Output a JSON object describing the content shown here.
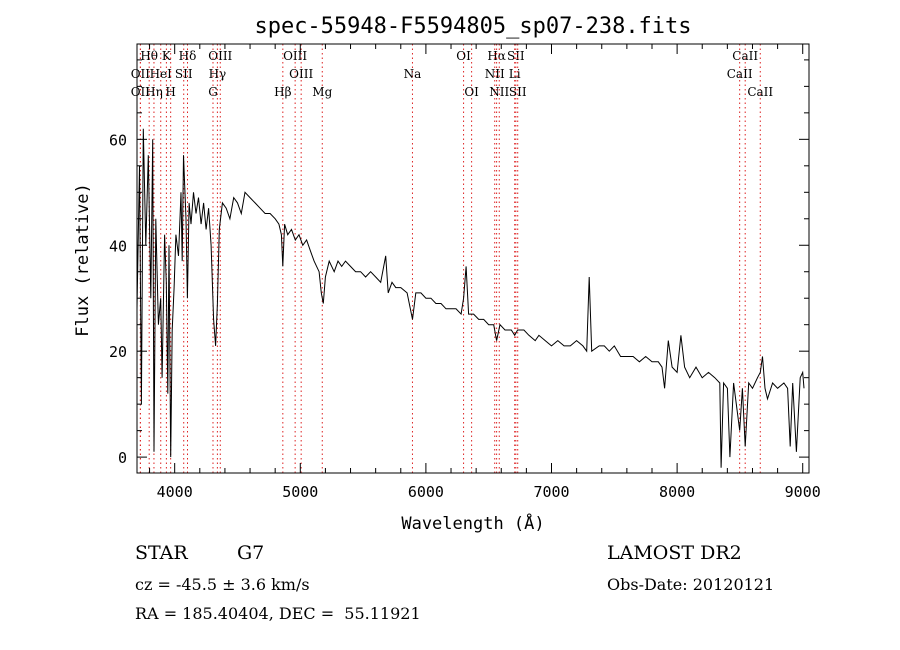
{
  "chart_data": {
    "type": "line",
    "title": "spec-55948-F5594805_sp07-238.fits",
    "xlabel": "Wavelength (Å)",
    "ylabel": "Flux (relative)",
    "xlim": [
      3700,
      9050
    ],
    "ylim": [
      -3,
      78
    ],
    "xticks": [
      4000,
      5000,
      6000,
      7000,
      8000,
      9000
    ],
    "yticks": [
      0,
      20,
      40,
      60
    ],
    "grid": false,
    "series": [
      {
        "values": [
          [
            3700,
            28
          ],
          [
            3720,
            55
          ],
          [
            3735,
            10
          ],
          [
            3750,
            62
          ],
          [
            3770,
            40
          ],
          [
            3790,
            57
          ],
          [
            3810,
            30
          ],
          [
            3825,
            60
          ],
          [
            3835,
            1
          ],
          [
            3850,
            45
          ],
          [
            3870,
            25
          ],
          [
            3889,
            30
          ],
          [
            3900,
            15
          ],
          [
            3920,
            42
          ],
          [
            3933,
            33
          ],
          [
            3945,
            12
          ],
          [
            3955,
            40
          ],
          [
            3968,
            0
          ],
          [
            3980,
            24
          ],
          [
            3995,
            32
          ],
          [
            4010,
            42
          ],
          [
            4030,
            38
          ],
          [
            4050,
            50
          ],
          [
            4060,
            37
          ],
          [
            4070,
            57
          ],
          [
            4090,
            45
          ],
          [
            4101,
            30
          ],
          [
            4115,
            48
          ],
          [
            4130,
            44
          ],
          [
            4150,
            50
          ],
          [
            4170,
            46
          ],
          [
            4190,
            49
          ],
          [
            4210,
            44
          ],
          [
            4230,
            48
          ],
          [
            4250,
            43
          ],
          [
            4270,
            47
          ],
          [
            4290,
            40
          ],
          [
            4310,
            26
          ],
          [
            4326,
            21
          ],
          [
            4340,
            29
          ],
          [
            4355,
            43
          ],
          [
            4380,
            48
          ],
          [
            4410,
            47
          ],
          [
            4440,
            45
          ],
          [
            4470,
            49
          ],
          [
            4500,
            48
          ],
          [
            4530,
            46
          ],
          [
            4560,
            50
          ],
          [
            4600,
            49
          ],
          [
            4640,
            48
          ],
          [
            4680,
            47
          ],
          [
            4720,
            46
          ],
          [
            4760,
            46
          ],
          [
            4800,
            45
          ],
          [
            4830,
            44
          ],
          [
            4850,
            42
          ],
          [
            4861,
            36
          ],
          [
            4875,
            44
          ],
          [
            4900,
            42
          ],
          [
            4930,
            43
          ],
          [
            4960,
            41
          ],
          [
            4990,
            42
          ],
          [
            5020,
            40
          ],
          [
            5050,
            41
          ],
          [
            5080,
            39
          ],
          [
            5110,
            37
          ],
          [
            5150,
            35
          ],
          [
            5167,
            31
          ],
          [
            5183,
            29
          ],
          [
            5200,
            34
          ],
          [
            5230,
            37
          ],
          [
            5270,
            35
          ],
          [
            5300,
            37
          ],
          [
            5330,
            36
          ],
          [
            5360,
            37
          ],
          [
            5400,
            36
          ],
          [
            5440,
            35
          ],
          [
            5480,
            35
          ],
          [
            5520,
            34
          ],
          [
            5560,
            35
          ],
          [
            5600,
            34
          ],
          [
            5640,
            33
          ],
          [
            5680,
            38
          ],
          [
            5700,
            31
          ],
          [
            5730,
            33
          ],
          [
            5760,
            32
          ],
          [
            5800,
            32
          ],
          [
            5850,
            31
          ],
          [
            5893,
            26
          ],
          [
            5920,
            31
          ],
          [
            5960,
            31
          ],
          [
            6000,
            30
          ],
          [
            6040,
            30
          ],
          [
            6080,
            29
          ],
          [
            6120,
            29
          ],
          [
            6160,
            28
          ],
          [
            6200,
            28
          ],
          [
            6240,
            28
          ],
          [
            6280,
            27
          ],
          [
            6300,
            30
          ],
          [
            6320,
            36
          ],
          [
            6340,
            27
          ],
          [
            6380,
            27
          ],
          [
            6420,
            26
          ],
          [
            6460,
            26
          ],
          [
            6500,
            25
          ],
          [
            6540,
            25
          ],
          [
            6563,
            22
          ],
          [
            6590,
            25
          ],
          [
            6630,
            24
          ],
          [
            6680,
            24
          ],
          [
            6707,
            23
          ],
          [
            6730,
            24
          ],
          [
            6780,
            24
          ],
          [
            6820,
            23
          ],
          [
            6870,
            22
          ],
          [
            6900,
            23
          ],
          [
            6950,
            22
          ],
          [
            7000,
            21
          ],
          [
            7050,
            22
          ],
          [
            7100,
            21
          ],
          [
            7150,
            21
          ],
          [
            7200,
            22
          ],
          [
            7250,
            21
          ],
          [
            7280,
            20
          ],
          [
            7300,
            34
          ],
          [
            7320,
            20
          ],
          [
            7380,
            21
          ],
          [
            7420,
            21
          ],
          [
            7460,
            20
          ],
          [
            7500,
            21
          ],
          [
            7550,
            19
          ],
          [
            7600,
            19
          ],
          [
            7650,
            19
          ],
          [
            7700,
            18
          ],
          [
            7750,
            19
          ],
          [
            7800,
            18
          ],
          [
            7850,
            18
          ],
          [
            7880,
            17
          ],
          [
            7900,
            13
          ],
          [
            7930,
            22
          ],
          [
            7960,
            17
          ],
          [
            8000,
            16
          ],
          [
            8030,
            23
          ],
          [
            8060,
            17
          ],
          [
            8100,
            15
          ],
          [
            8150,
            17
          ],
          [
            8200,
            15
          ],
          [
            8250,
            16
          ],
          [
            8300,
            15
          ],
          [
            8340,
            14
          ],
          [
            8350,
            -2
          ],
          [
            8370,
            14
          ],
          [
            8400,
            13
          ],
          [
            8420,
            0
          ],
          [
            8450,
            14
          ],
          [
            8498,
            5
          ],
          [
            8520,
            13
          ],
          [
            8542,
            2
          ],
          [
            8570,
            14
          ],
          [
            8600,
            13
          ],
          [
            8640,
            15
          ],
          [
            8662,
            16
          ],
          [
            8680,
            19
          ],
          [
            8700,
            13
          ],
          [
            8720,
            11
          ],
          [
            8760,
            14
          ],
          [
            8800,
            13
          ],
          [
            8850,
            14
          ],
          [
            8880,
            13
          ],
          [
            8900,
            2
          ],
          [
            8920,
            14
          ],
          [
            8950,
            1
          ],
          [
            8980,
            15
          ],
          [
            9000,
            16
          ],
          [
            9010,
            13
          ]
        ]
      }
    ],
    "line_markers": [
      {
        "label": "Hθ",
        "x": 3797,
        "row": 0
      },
      {
        "label": "K",
        "x": 3934,
        "row": 0
      },
      {
        "label": "Hδ",
        "x": 4102,
        "row": 0
      },
      {
        "label": "OIII",
        "x": 4363,
        "row": 0
      },
      {
        "label": "OIII",
        "x": 4959,
        "row": 0
      },
      {
        "label": "OI",
        "x": 6300,
        "row": 0
      },
      {
        "label": "Hα",
        "x": 6563,
        "row": 0
      },
      {
        "label": "SII",
        "x": 6716,
        "row": 0
      },
      {
        "label": "CaII",
        "x": 8542,
        "row": 0
      },
      {
        "label": "OII",
        "x": 3727,
        "row": 1
      },
      {
        "label": "HeI",
        "x": 3889,
        "row": 1
      },
      {
        "label": "SII",
        "x": 4072,
        "row": 1
      },
      {
        "label": "Hγ",
        "x": 4340,
        "row": 1
      },
      {
        "label": "OIII",
        "x": 5007,
        "row": 1
      },
      {
        "label": "Na",
        "x": 5893,
        "row": 1
      },
      {
        "label": "NII",
        "x": 6548,
        "row": 1
      },
      {
        "label": "Li",
        "x": 6707,
        "row": 1
      },
      {
        "label": "CaII",
        "x": 8498,
        "row": 1
      },
      {
        "label": "OII",
        "x": 3727,
        "row": 2
      },
      {
        "label": "Hη",
        "x": 3835,
        "row": 2
      },
      {
        "label": "H",
        "x": 3968,
        "row": 2
      },
      {
        "label": "G",
        "x": 4305,
        "row": 2
      },
      {
        "label": "Hβ",
        "x": 4861,
        "row": 2
      },
      {
        "label": "Mg",
        "x": 5175,
        "row": 2
      },
      {
        "label": "OI",
        "x": 6364,
        "row": 2
      },
      {
        "label": "NII",
        "x": 6584,
        "row": 2
      },
      {
        "label": "SII",
        "x": 6731,
        "row": 2
      },
      {
        "label": "CaII",
        "x": 8662,
        "row": 2
      }
    ]
  },
  "footer": {
    "object_class": "STAR",
    "subclass": "G7",
    "redshift": "cz = -45.5 ± 3.6 km/s",
    "coords": "RA = 185.40404, DEC =  55.11921",
    "survey": "LAMOST DR2",
    "obs_date": "Obs-Date: 20120121"
  }
}
